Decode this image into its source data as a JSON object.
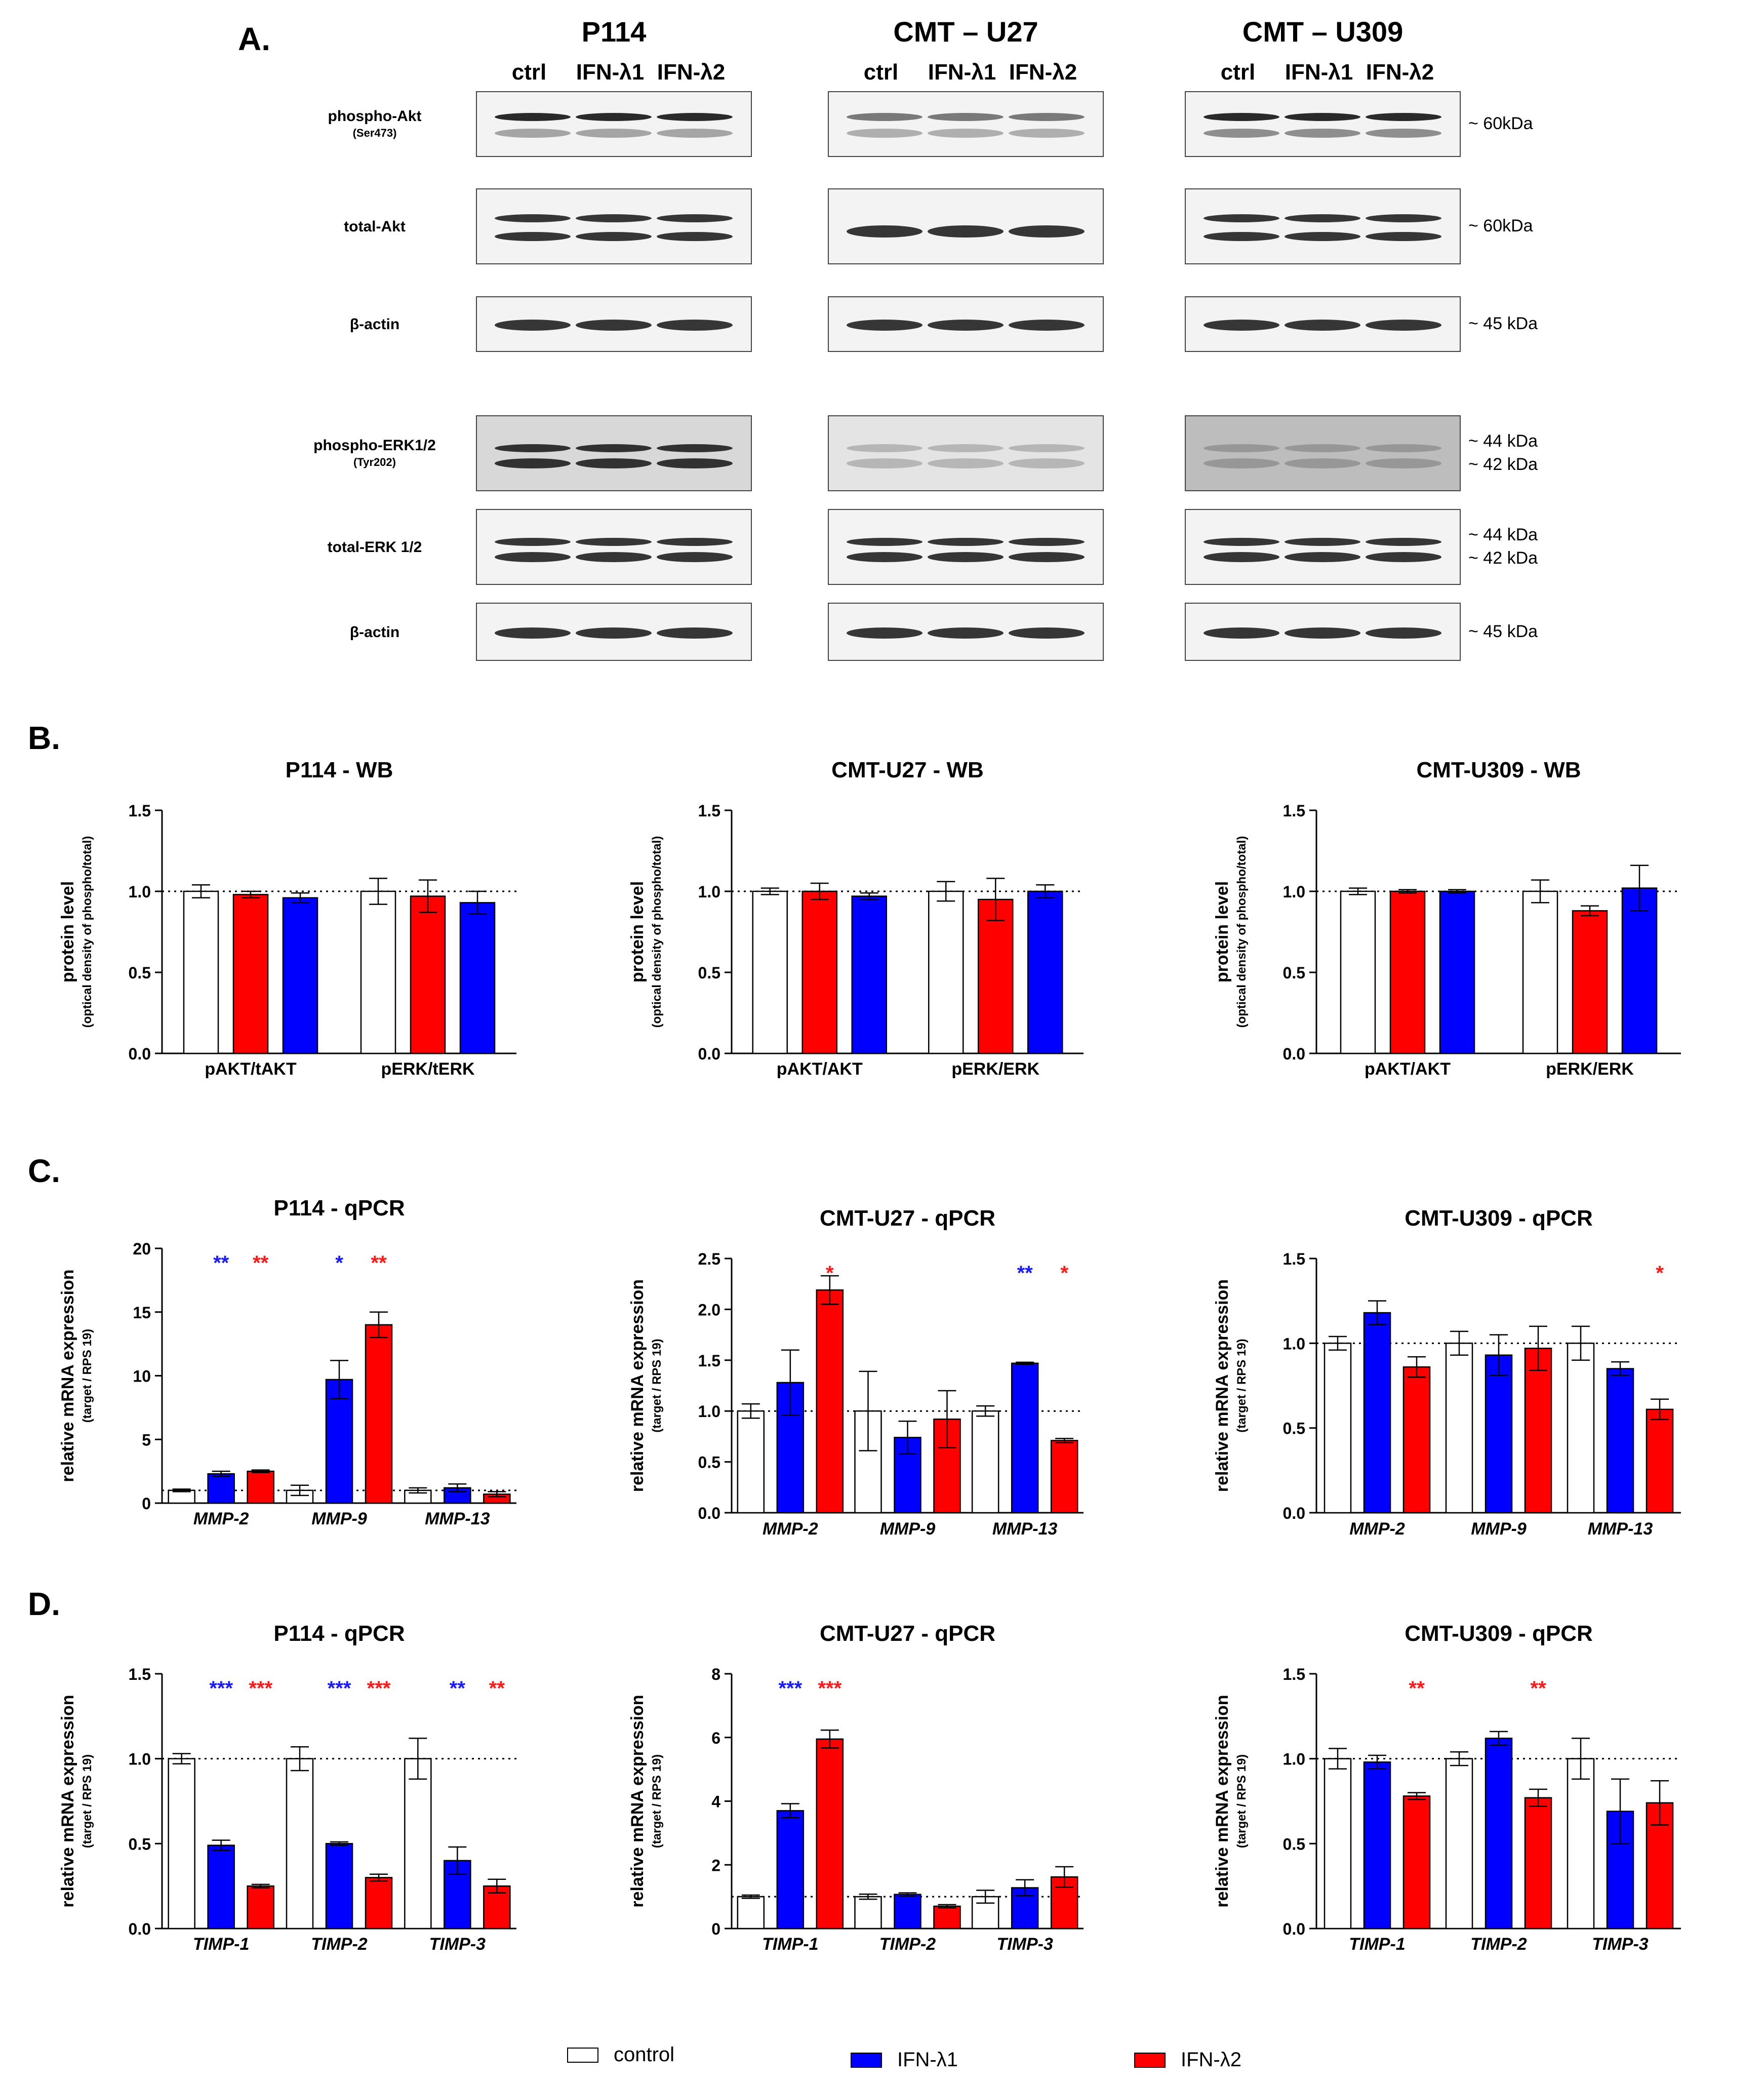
{
  "panels": {
    "A": "A.",
    "B": "B.",
    "C": "C.",
    "D": "D."
  },
  "blots": {
    "titles": [
      "P114",
      "CMT – U27",
      "CMT – U309"
    ],
    "lanes": [
      "ctrl",
      "IFN-λ1",
      "IFN-λ2"
    ],
    "rows": [
      {
        "label": "phospho-Akt",
        "sub": "(Ser473)",
        "kda": "~ 60kDa"
      },
      {
        "label": "total-Akt",
        "sub": "",
        "kda": "~ 60kDa"
      },
      {
        "label": "β-actin",
        "sub": "",
        "kda": "~ 45 kDa"
      },
      {
        "label": "phospho-ERK1/2",
        "sub": "(Tyr202)",
        "kda": "~ 44 kDa\n~ 42 kDa"
      },
      {
        "label": "total-ERK 1/2",
        "sub": "",
        "kda": "~ 44 kDa\n~ 42 kDa"
      },
      {
        "label": "β-actin",
        "sub": "",
        "kda": "~ 45 kDa"
      }
    ]
  },
  "colors": {
    "control": "#ffffff",
    "ifn_l1": "#0000ff",
    "ifn_l2": "#ff0000",
    "star_l1": "#1a1aff",
    "star_l2": "#ff1a1a"
  },
  "legend": {
    "control": "control",
    "ifn_l1": "IFN-λ1",
    "ifn_l2": "IFN-λ2"
  },
  "chart_data": [
    {
      "id": "B1",
      "type": "bar",
      "title": "P114 - WB",
      "ylabel": "protein level",
      "ylabel2": "(optical density of phospho/total)",
      "ylim": [
        0,
        1.5
      ],
      "ticks": [
        "0.0",
        "0.5",
        "1.0",
        "1.5"
      ],
      "categories": [
        "pAKT/tAKT",
        "pERK/tERK"
      ],
      "italic_categories": false,
      "series": [
        {
          "name": "control",
          "color": "#ffffff",
          "values": [
            1.0,
            1.0
          ],
          "errors": [
            0.04,
            0.08
          ]
        },
        {
          "name": "IFN-λ2",
          "color": "#ff0000",
          "values": [
            0.98,
            0.97
          ],
          "errors": [
            0.02,
            0.1
          ]
        },
        {
          "name": "IFN-λ1",
          "color": "#0000ff",
          "values": [
            0.96,
            0.93
          ],
          "errors": [
            0.03,
            0.07
          ]
        }
      ],
      "stars": []
    },
    {
      "id": "B2",
      "type": "bar",
      "title": "CMT-U27 - WB",
      "ylabel": "protein level",
      "ylabel2": "(optical density of phospho/total)",
      "ylim": [
        0,
        1.5
      ],
      "ticks": [
        "0.0",
        "0.5",
        "1.0",
        "1.5"
      ],
      "categories": [
        "pAKT/AKT",
        "pERK/ERK"
      ],
      "italic_categories": false,
      "series": [
        {
          "name": "control",
          "color": "#ffffff",
          "values": [
            1.0,
            1.0
          ],
          "errors": [
            0.02,
            0.06
          ]
        },
        {
          "name": "IFN-λ2",
          "color": "#ff0000",
          "values": [
            1.0,
            0.95
          ],
          "errors": [
            0.05,
            0.13
          ]
        },
        {
          "name": "IFN-λ1",
          "color": "#0000ff",
          "values": [
            0.97,
            1.0
          ],
          "errors": [
            0.02,
            0.04
          ]
        }
      ],
      "stars": []
    },
    {
      "id": "B3",
      "type": "bar",
      "title": "CMT-U309 - WB",
      "ylabel": "protein level",
      "ylabel2": "(optical density of phospho/total)",
      "ylim": [
        0,
        1.5
      ],
      "ticks": [
        "0.0",
        "0.5",
        "1.0",
        "1.5"
      ],
      "categories": [
        "pAKT/AKT",
        "pERK/ERK"
      ],
      "italic_categories": false,
      "series": [
        {
          "name": "control",
          "color": "#ffffff",
          "values": [
            1.0,
            1.0
          ],
          "errors": [
            0.02,
            0.07
          ]
        },
        {
          "name": "IFN-λ2",
          "color": "#ff0000",
          "values": [
            1.0,
            0.88
          ],
          "errors": [
            0.01,
            0.03
          ]
        },
        {
          "name": "IFN-λ1",
          "color": "#0000ff",
          "values": [
            1.0,
            1.02
          ],
          "errors": [
            0.01,
            0.14
          ]
        }
      ],
      "stars": []
    },
    {
      "id": "C1",
      "type": "bar",
      "title": "P114 - qPCR",
      "ylabel": "relative mRNA expression",
      "ylabel2": "(target / RPS 19)",
      "ylim": [
        0,
        20
      ],
      "ticks": [
        "0",
        "5",
        "10",
        "15",
        "20"
      ],
      "categories": [
        "MMP-2",
        "MMP-9",
        "MMP-13"
      ],
      "italic_categories": true,
      "series": [
        {
          "name": "control",
          "color": "#ffffff",
          "values": [
            1.0,
            1.0,
            1.0
          ],
          "errors": [
            0.1,
            0.4,
            0.2
          ]
        },
        {
          "name": "IFN-λ1",
          "color": "#0000ff",
          "values": [
            2.3,
            9.7,
            1.2
          ],
          "errors": [
            0.2,
            1.5,
            0.3
          ]
        },
        {
          "name": "IFN-λ2",
          "color": "#ff0000",
          "values": [
            2.5,
            14.0,
            0.7
          ],
          "errors": [
            0.1,
            1.0,
            0.2
          ]
        }
      ],
      "stars": [
        {
          "cat": 0,
          "series": 1,
          "text": "**"
        },
        {
          "cat": 0,
          "series": 2,
          "text": "**"
        },
        {
          "cat": 1,
          "series": 1,
          "text": "*"
        },
        {
          "cat": 1,
          "series": 2,
          "text": "**"
        }
      ]
    },
    {
      "id": "C2",
      "type": "bar",
      "title": "CMT-U27 - qPCR",
      "ylabel": "relative mRNA expression",
      "ylabel2": "(target / RPS 19)",
      "ylim": [
        0,
        2.5
      ],
      "ticks": [
        "0.0",
        "0.5",
        "1.0",
        "1.5",
        "2.0",
        "2.5"
      ],
      "categories": [
        "MMP-2",
        "MMP-9",
        "MMP-13"
      ],
      "italic_categories": true,
      "series": [
        {
          "name": "control",
          "color": "#ffffff",
          "values": [
            1.0,
            1.0,
            1.0
          ],
          "errors": [
            0.07,
            0.39,
            0.05
          ]
        },
        {
          "name": "IFN-λ1",
          "color": "#0000ff",
          "values": [
            1.28,
            0.74,
            1.47
          ],
          "errors": [
            0.32,
            0.16,
            0.01
          ]
        },
        {
          "name": "IFN-λ2",
          "color": "#ff0000",
          "values": [
            2.19,
            0.92,
            0.71
          ],
          "errors": [
            0.14,
            0.28,
            0.02
          ]
        }
      ],
      "stars": [
        {
          "cat": 0,
          "series": 2,
          "text": "*"
        },
        {
          "cat": 2,
          "series": 1,
          "text": "**"
        },
        {
          "cat": 2,
          "series": 2,
          "text": "*"
        }
      ]
    },
    {
      "id": "C3",
      "type": "bar",
      "title": "CMT-U309 - qPCR",
      "ylabel": "relative mRNA expression",
      "ylabel2": "(target / RPS 19)",
      "ylim": [
        0,
        1.5
      ],
      "ticks": [
        "0.0",
        "0.5",
        "1.0",
        "1.5"
      ],
      "categories": [
        "MMP-2",
        "MMP-9",
        "MMP-13"
      ],
      "italic_categories": true,
      "series": [
        {
          "name": "control",
          "color": "#ffffff",
          "values": [
            1.0,
            1.0,
            1.0
          ],
          "errors": [
            0.04,
            0.07,
            0.1
          ]
        },
        {
          "name": "IFN-λ1",
          "color": "#0000ff",
          "values": [
            1.18,
            0.93,
            0.85
          ],
          "errors": [
            0.07,
            0.12,
            0.04
          ]
        },
        {
          "name": "IFN-λ2",
          "color": "#ff0000",
          "values": [
            0.86,
            0.97,
            0.61
          ],
          "errors": [
            0.06,
            0.13,
            0.06
          ]
        }
      ],
      "stars": [
        {
          "cat": 2,
          "series": 2,
          "text": "*"
        }
      ]
    },
    {
      "id": "D1",
      "type": "bar",
      "title": "P114 - qPCR",
      "ylabel": "relative mRNA expression",
      "ylabel2": "(target / RPS 19)",
      "ylim": [
        0,
        1.5
      ],
      "ticks": [
        "0.0",
        "0.5",
        "1.0",
        "1.5"
      ],
      "categories": [
        "TIMP-1",
        "TIMP-2",
        "TIMP-3"
      ],
      "italic_categories": true,
      "series": [
        {
          "name": "control",
          "color": "#ffffff",
          "values": [
            1.0,
            1.0,
            1.0
          ],
          "errors": [
            0.03,
            0.07,
            0.12
          ]
        },
        {
          "name": "IFN-λ1",
          "color": "#0000ff",
          "values": [
            0.49,
            0.5,
            0.4
          ],
          "errors": [
            0.03,
            0.01,
            0.08
          ]
        },
        {
          "name": "IFN-λ2",
          "color": "#ff0000",
          "values": [
            0.25,
            0.3,
            0.25
          ],
          "errors": [
            0.01,
            0.02,
            0.04
          ]
        }
      ],
      "stars": [
        {
          "cat": 0,
          "series": 1,
          "text": "***"
        },
        {
          "cat": 0,
          "series": 2,
          "text": "***"
        },
        {
          "cat": 1,
          "series": 1,
          "text": "***"
        },
        {
          "cat": 1,
          "series": 2,
          "text": "***"
        },
        {
          "cat": 2,
          "series": 1,
          "text": "**"
        },
        {
          "cat": 2,
          "series": 2,
          "text": "**"
        }
      ]
    },
    {
      "id": "D2",
      "type": "bar",
      "title": "CMT-U27 - qPCR",
      "ylabel": "relative mRNA expression",
      "ylabel2": "(target / RPS 19)",
      "ylim": [
        0,
        8
      ],
      "ticks": [
        "0",
        "2",
        "4",
        "6",
        "8"
      ],
      "categories": [
        "TIMP-1",
        "TIMP-2",
        "TIMP-3"
      ],
      "italic_categories": true,
      "series": [
        {
          "name": "control",
          "color": "#ffffff",
          "values": [
            1.0,
            1.0,
            1.0
          ],
          "errors": [
            0.05,
            0.08,
            0.2
          ]
        },
        {
          "name": "IFN-λ1",
          "color": "#0000ff",
          "values": [
            3.7,
            1.07,
            1.28
          ],
          "errors": [
            0.22,
            0.05,
            0.25
          ]
        },
        {
          "name": "IFN-λ2",
          "color": "#ff0000",
          "values": [
            5.95,
            0.7,
            1.62
          ],
          "errors": [
            0.28,
            0.05,
            0.32
          ]
        }
      ],
      "stars": [
        {
          "cat": 0,
          "series": 1,
          "text": "***"
        },
        {
          "cat": 0,
          "series": 2,
          "text": "***"
        }
      ]
    },
    {
      "id": "D3",
      "type": "bar",
      "title": "CMT-U309 - qPCR",
      "ylabel": "relative mRNA expression",
      "ylabel2": "(target / RPS 19)",
      "ylim": [
        0,
        1.5
      ],
      "ticks": [
        "0.0",
        "0.5",
        "1.0",
        "1.5"
      ],
      "categories": [
        "TIMP-1",
        "TIMP-2",
        "TIMP-3"
      ],
      "italic_categories": true,
      "series": [
        {
          "name": "control",
          "color": "#ffffff",
          "values": [
            1.0,
            1.0,
            1.0
          ],
          "errors": [
            0.06,
            0.04,
            0.12
          ]
        },
        {
          "name": "IFN-λ1",
          "color": "#0000ff",
          "values": [
            0.98,
            1.12,
            0.69
          ],
          "errors": [
            0.04,
            0.04,
            0.19
          ]
        },
        {
          "name": "IFN-λ2",
          "color": "#ff0000",
          "values": [
            0.78,
            0.77,
            0.74
          ],
          "errors": [
            0.02,
            0.05,
            0.13
          ]
        }
      ],
      "stars": [
        {
          "cat": 0,
          "series": 2,
          "text": "**"
        },
        {
          "cat": 1,
          "series": 2,
          "text": "**"
        }
      ]
    }
  ]
}
